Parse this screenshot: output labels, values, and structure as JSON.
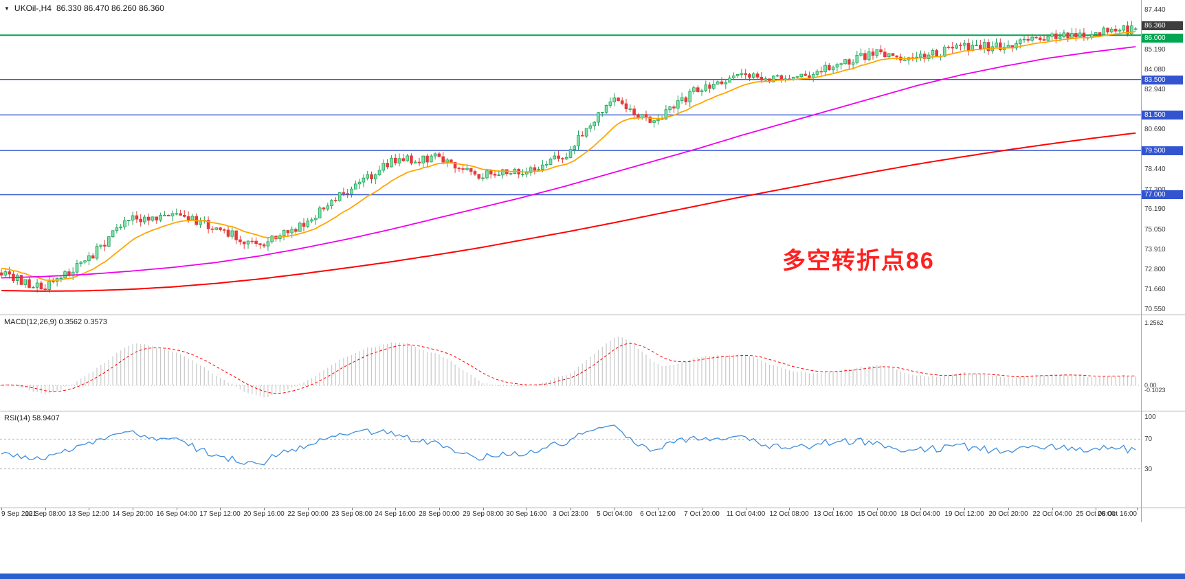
{
  "ui": {
    "header": {
      "marker": "▼",
      "symbol": "UKOil-,H4",
      "ohlc_text": "86.330 86.470 86.260 86.360"
    },
    "annotation": {
      "text": "多空转折点86",
      "color": "#FF2020"
    },
    "price_axis": {
      "plain_labels": [
        "87.440",
        "85.190",
        "84.080",
        "82.940",
        "80.690",
        "78.440",
        "77.300",
        "76.190",
        "75.050",
        "73.910",
        "72.800",
        "71.660",
        "70.550"
      ],
      "badges": [
        {
          "text": "86.360",
          "value": 86.36,
          "bg": "#3e3e3e",
          "dy": -11
        },
        {
          "text": "86.000",
          "value": 86.0,
          "bg": "#00a651",
          "dy": -2
        },
        {
          "text": "83.500",
          "value": 83.5,
          "bg": "#3354cf",
          "dy": -6
        },
        {
          "text": "81.500",
          "value": 81.5,
          "bg": "#3354cf",
          "dy": -6
        },
        {
          "text": "79.500",
          "value": 79.5,
          "bg": "#3354cf",
          "dy": -6
        },
        {
          "text": "77.000",
          "value": 77.0,
          "bg": "#3354cf",
          "dy": -6
        }
      ]
    },
    "macd": {
      "label": "MACD(12,26,9) 0.3562 0.3573",
      "axis": [
        {
          "text": "1.2562",
          "value": 1.2562
        },
        {
          "text": "0.00",
          "value": 0
        },
        {
          "text": "-0.1023",
          "value": -0.1023
        }
      ]
    },
    "rsi": {
      "label": "RSI(14) 58.9407",
      "axis": [
        {
          "text": "100",
          "value": 100
        },
        {
          "text": "70",
          "value": 70
        },
        {
          "text": "30",
          "value": 30
        }
      ]
    },
    "time_axis": {
      "labels": [
        "9 Sep 2021",
        "10 Sep 08:00",
        "13 Sep 12:00",
        "14 Sep 20:00",
        "16 Sep 04:00",
        "17 Sep 12:00",
        "20 Sep 16:00",
        "22 Sep 00:00",
        "23 Sep 08:00",
        "24 Sep 16:00",
        "28 Sep 00:00",
        "29 Sep 08:00",
        "30 Sep 16:00",
        "3 Oct 23:00",
        "5 Oct 04:00",
        "6 Oct 12:00",
        "7 Oct 20:00",
        "11 Oct 04:00",
        "12 Oct 08:00",
        "13 Oct 16:00",
        "15 Oct 00:00",
        "18 Oct 04:00",
        "19 Oct 12:00",
        "20 Oct 20:00",
        "22 Oct 04:00",
        "25 Oct 08:00",
        "26 Oct 16:00"
      ]
    },
    "colors": {
      "up": "#1fa35c",
      "up_fill": "#7fdfa4",
      "down": "#e33a3a",
      "ma_fast": "#ffa500",
      "ma_mid": "#ee00ee",
      "ma_slow": "#ff0000",
      "support": "#3354cf",
      "pivot": "#00a651",
      "macd_hist": "#c8c8c8",
      "macd_signal": "#ff0000",
      "rsi_line": "#3e8ede",
      "taskbar": "#2a5fd0"
    }
  },
  "chart_data": [
    {
      "type": "candlestick",
      "title": "UKOil-,H4",
      "timeframe": "H4",
      "ohlc_current": {
        "open": 86.33,
        "high": 86.47,
        "low": 86.26,
        "close": 86.36
      },
      "ylim": [
        70.55,
        87.44
      ],
      "x_labels": [
        "9 Sep 2021",
        "10 Sep 08:00",
        "13 Sep 12:00",
        "14 Sep 20:00",
        "16 Sep 04:00",
        "17 Sep 12:00",
        "20 Sep 16:00",
        "22 Sep 00:00",
        "23 Sep 08:00",
        "24 Sep 16:00",
        "28 Sep 00:00",
        "29 Sep 08:00",
        "30 Sep 16:00",
        "3 Oct 23:00",
        "5 Oct 04:00",
        "6 Oct 12:00",
        "7 Oct 20:00",
        "11 Oct 04:00",
        "12 Oct 08:00",
        "13 Oct 16:00",
        "15 Oct 00:00",
        "18 Oct 04:00",
        "19 Oct 12:00",
        "20 Oct 20:00",
        "22 Oct 04:00",
        "25 Oct 08:00",
        "26 Oct 16:00"
      ],
      "anchor_closes": [
        72.7,
        71.7,
        73.2,
        75.6,
        75.9,
        75.1,
        74.1,
        75.4,
        77.2,
        78.9,
        79.1,
        78.1,
        78.3,
        79.3,
        82.4,
        81.0,
        83.0,
        83.9,
        83.4,
        84.2,
        85.0,
        84.7,
        85.3,
        85.4,
        85.8,
        86.1,
        86.36
      ],
      "candles_per_segment": 11,
      "overlays": {
        "fast": {
          "name": "MA-fast",
          "type": "ema",
          "period": 16,
          "init": 72.9
        },
        "mid": {
          "name": "MA-mid",
          "anchors": [
            72.3,
            72.38,
            72.5,
            72.68,
            72.9,
            73.18,
            73.55,
            74.0,
            74.5,
            75.05,
            75.65,
            76.25,
            76.85,
            77.5,
            78.2,
            78.9,
            79.6,
            80.35,
            81.05,
            81.75,
            82.45,
            83.15,
            83.75,
            84.25,
            84.7,
            85.05,
            85.35
          ]
        },
        "slow": {
          "name": "MA-slow",
          "anchors": [
            71.6,
            71.56,
            71.58,
            71.66,
            71.8,
            72.0,
            72.25,
            72.55,
            72.88,
            73.22,
            73.6,
            74.0,
            74.45,
            74.9,
            75.38,
            75.88,
            76.38,
            76.88,
            77.35,
            77.82,
            78.28,
            78.72,
            79.12,
            79.5,
            79.85,
            80.18,
            80.48
          ]
        }
      },
      "hlines": [
        {
          "price": 86.0,
          "color": "#00a651",
          "width": 2
        },
        {
          "price": 83.5,
          "color": "#3354cf",
          "width": 1.4
        },
        {
          "price": 81.5,
          "color": "#3354cf",
          "width": 1.4
        },
        {
          "price": 79.5,
          "color": "#3354cf",
          "width": 1.4
        },
        {
          "price": 77.0,
          "color": "#3354cf",
          "width": 1.4
        }
      ],
      "annotation": "多空转折点86"
    },
    {
      "type": "line",
      "name": "MACD(12,26,9)",
      "current": {
        "macd": 0.3562,
        "signal": 0.3573
      },
      "ylim": [
        -0.2,
        1.3
      ],
      "axis_marks": [
        1.2562,
        0,
        -0.1023
      ]
    },
    {
      "type": "line",
      "name": "RSI(14)",
      "current": 58.9407,
      "levels": [
        70,
        30
      ],
      "ylim": [
        0,
        100
      ]
    }
  ]
}
